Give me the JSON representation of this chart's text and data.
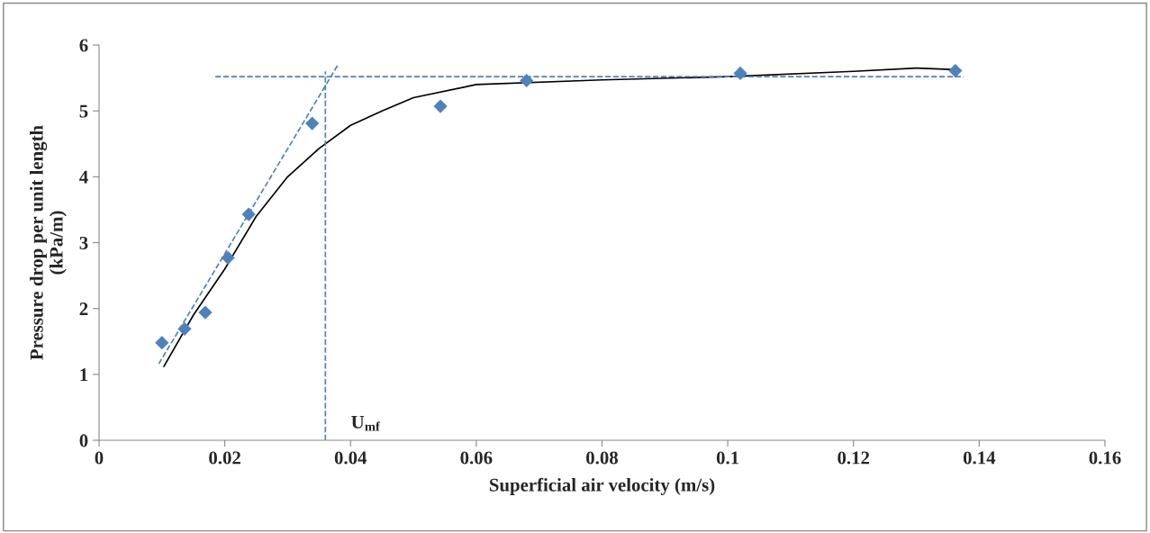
{
  "chart_data": {
    "type": "scatter",
    "xlabel": "Superficial air velocity (m/s)",
    "ylabel": "Pressure drop per unit length\n(kPa/m)",
    "xlim": [
      0,
      0.16
    ],
    "ylim": [
      0,
      6
    ],
    "xticks": [
      0,
      0.02,
      0.04,
      0.06,
      0.08,
      0.1,
      0.12,
      0.14,
      0.16
    ],
    "yticks": [
      0,
      1,
      2,
      3,
      4,
      5,
      6
    ],
    "grid": false,
    "series": [
      {
        "color": "#4f81bd",
        "marker": "diamond",
        "x": [
          0.01,
          0.0136,
          0.0169,
          0.0205,
          0.0238,
          0.0339,
          0.0543,
          0.068,
          0.102,
          0.1362
        ],
        "values": [
          1.48,
          1.69,
          1.94,
          2.77,
          3.43,
          4.81,
          5.07,
          5.46,
          5.57,
          5.61
        ]
      },
      {
        "type": "line",
        "color": "#000000",
        "line_style": "solid",
        "x": [
          0.0103,
          0.015,
          0.02,
          0.025,
          0.03,
          0.035,
          0.04,
          0.045,
          0.05,
          0.06,
          0.08,
          0.1,
          0.12,
          0.13,
          0.1355
        ],
        "values": [
          1.12,
          1.9,
          2.6,
          3.4,
          4.0,
          4.43,
          4.78,
          5.0,
          5.2,
          5.4,
          5.47,
          5.52,
          5.6,
          5.65,
          5.63
        ]
      },
      {
        "type": "line",
        "color": "#4f81bd",
        "line_style": "dashed",
        "x": [
          0.0095,
          0.038
        ],
        "values": [
          1.16,
          5.7
        ]
      },
      {
        "type": "line",
        "color": "#4f81bd",
        "line_style": "dashed",
        "x": [
          0.0185,
          0.1375
        ],
        "values": [
          5.52,
          5.52
        ]
      },
      {
        "type": "line",
        "color": "#4f81bd",
        "line_style": "dashed",
        "x": [
          0.036,
          0.036
        ],
        "values": [
          0,
          5.6
        ]
      }
    ],
    "annotations": [
      "U$_{mf}$"
    ]
  }
}
